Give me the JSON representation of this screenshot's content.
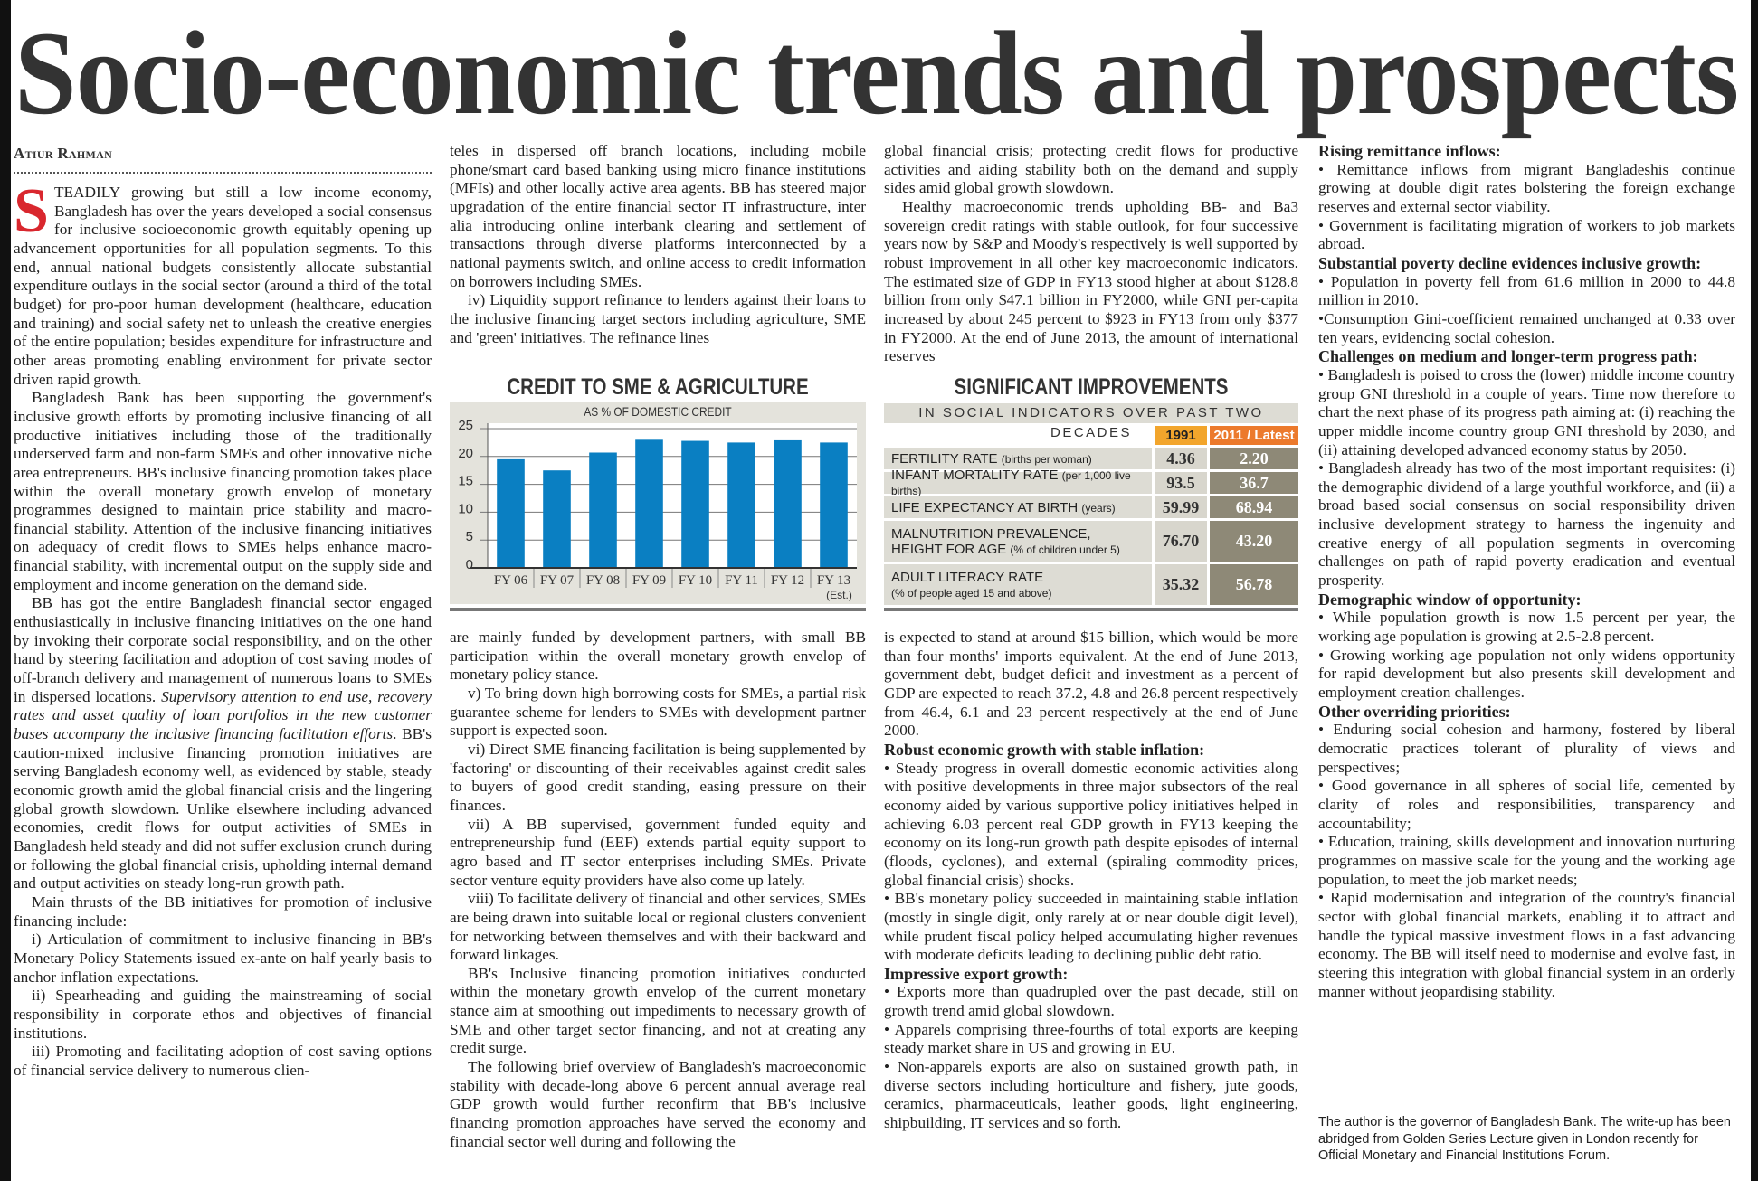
{
  "title": "Socio-economic trends and prospects",
  "byline": "Atiur Rahman",
  "colors": {
    "dropcap": "#d9272e",
    "bar": "#0a7fc2",
    "header_1991": "#f2a52c",
    "header_latest": "#ec7a2c"
  },
  "columns": [
    {
      "id": "col1",
      "blocks": [
        {
          "type": "p",
          "dropcap": "S",
          "text": "TEADILY growing but still a low income economy, Bangladesh has over the years developed a social consensus for inclusive socioeconomic growth equitably opening up advancement opportunities for all population segments. To this end, annual national budgets consistently allocate substantial expenditure outlays in the social sector (around a third of the total budget) for pro-poor human development (healthcare, education and training) and social safety net to unleash the creative energies of the entire population; besides expenditure for infrastructure and other areas promoting enabling environment for private sector driven rapid growth."
        },
        {
          "type": "p",
          "text": "Bangladesh Bank has been supporting the government's inclusive growth efforts by promoting inclusive financing of all productive initiatives including those of the traditionally underserved farm and non-farm SMEs and other innovative niche area entrepreneurs. BB's inclusive financing promotion takes place within the overall monetary growth envelop of monetary programmes designed to maintain price stability and macro-financial stability. Attention of the inclusive financing initiatives on adequacy of credit flows to SMEs helps enhance macro-financial stability, with incremental output on the supply side and employment and income generation on the demand side."
        },
        {
          "type": "p",
          "segments": [
            {
              "text": "BB has got the entire Bangladesh financial sector engaged enthusiastically in inclusive financing initiatives on the one hand by invoking their corporate social responsibility, and on the other hand by steering facilitation and adoption of cost saving modes of off-branch delivery and management of numerous loans to SMEs in dispersed locations. "
            },
            {
              "text": "Supervisory attention to end use, recovery rates and asset quality of loan portfolios in the new customer bases accompany the inclusive financing facilitation efforts",
              "italic": true
            },
            {
              "text": ". BB's caution-mixed inclusive financing promotion initiatives are serving Bangladesh economy well, as evidenced by stable, steady economic growth amid the global financial crisis and the lingering global growth slowdown. Unlike elsewhere including advanced economies, credit flows for output activities of SMEs in Bangladesh held steady and did not suffer exclusion crunch during or following the global financial crisis, upholding internal demand and output activities on steady long-run growth path."
            }
          ]
        },
        {
          "type": "p",
          "text": "Main thrusts of the BB initiatives for promotion of inclusive financing include:"
        },
        {
          "type": "p",
          "text": "i) Articulation of commitment to inclusive financing in BB's Monetary Policy Statements issued ex-ante on half yearly basis to anchor inflation expectations."
        },
        {
          "type": "p",
          "text": "ii) Spearheading and guiding the mainstreaming of social responsibility in corporate ethos and objectives of financial institutions."
        },
        {
          "type": "p",
          "text": "iii) Promoting and facilitating adoption of cost saving options of financial service delivery to numerous clien-"
        }
      ]
    },
    {
      "id": "col2-top",
      "blocks": [
        {
          "type": "noind",
          "text": "teles in dispersed off branch locations, including mobile phone/smart card based banking using micro finance institutions (MFIs) and other locally active area agents. BB has steered major upgradation of the entire financial sector IT infrastructure, inter alia introducing online interbank clearing and settlement of transactions through diverse platforms interconnected by a national payments switch, and online access to credit information on borrowers including SMEs."
        },
        {
          "type": "p",
          "text": "iv) Liquidity support refinance to lenders against their loans to the inclusive financing target sectors including agriculture, SME and 'green' initiatives. The refinance lines"
        }
      ]
    },
    {
      "id": "col2-bottom",
      "blocks": [
        {
          "type": "noind",
          "text": "are mainly funded by development partners, with small BB participation within the overall monetary growth envelop of monetary policy stance."
        },
        {
          "type": "p",
          "text": "v) To bring down high borrowing costs for SMEs, a partial risk guarantee scheme for lenders to SMEs with development partner support is expected soon."
        },
        {
          "type": "p",
          "text": "vi) Direct SME financing facilitation is being supplemented by 'factoring' or discounting of their receivables against credit sales to buyers of good credit standing, easing pressure on their finances."
        },
        {
          "type": "p",
          "text": "vii) A BB supervised, government funded equity and entrepreneurship fund (EEF) extends partial equity support to agro based and IT sector enterprises including SMEs. Private sector venture equity providers have also come up lately."
        },
        {
          "type": "p",
          "text": "viii) To facilitate delivery of financial and other services, SMEs are being drawn into suitable local or regional clusters convenient for networking between themselves and with their backward and forward linkages."
        },
        {
          "type": "p",
          "text": "BB's Inclusive financing promotion initiatives conducted within the monetary growth envelop of the current monetary stance aim at smoothing out impediments to necessary growth of SME and other target sector financing, and not at creating any credit surge."
        },
        {
          "type": "p",
          "text": "The following brief overview of Bangladesh's macroeconomic stability with decade-long above 6 percent annual average real GDP growth would further reconfirm that BB's inclusive financing promotion approaches have served the economy and financial sector well during and following the"
        }
      ]
    },
    {
      "id": "col3-top",
      "blocks": [
        {
          "type": "noind",
          "text": "global financial crisis; protecting credit flows for productive activities and aiding stability both on the demand and supply sides amid global growth slowdown."
        },
        {
          "type": "p",
          "text": "Healthy macroeconomic trends upholding BB- and Ba3 sovereign credit ratings with stable outlook, for four successive years now by S&P and Moody's respectively is well supported by robust improvement in all other key macroeconomic indicators. The estimated size of GDP in FY13 stood higher at about $128.8 billion from only $47.1 billion in FY2000, while GNI per-capita increased by about 245 percent to $923 in FY13 from only $377 in FY2000. At the end of June 2013, the amount of international reserves"
        }
      ]
    },
    {
      "id": "col3-bottom",
      "blocks": [
        {
          "type": "noind",
          "text": "is expected to stand at around $15 billion, which would be more than four months' imports equivalent. At the end of June 2013, government debt, budget deficit and investment as a percent of GDP are expected to reach 37.2, 4.8 and 26.8 percent respectively from 46.4, 6.1 and 23 percent respectively at the end of June 2000."
        },
        {
          "type": "h",
          "text": "Robust economic growth with stable inflation:"
        },
        {
          "type": "b",
          "text": "• Steady progress in overall domestic economic activities along with positive developments in three major subsectors of the real economy aided by various supportive policy initiatives helped in achieving 6.03 percent real GDP growth in FY13 keeping the economy on its long-run growth path despite episodes of internal (floods, cyclones), and external (spiraling commodity prices, global financial crisis) shocks."
        },
        {
          "type": "b",
          "text": "•  BB's monetary policy succeeded in maintaining stable inflation (mostly in single digit, only rarely at or near double digit level), while prudent fiscal policy helped accumulating higher revenues with moderate deficits leading to declining public debt ratio."
        },
        {
          "type": "h",
          "text": "Impressive export growth:"
        },
        {
          "type": "b",
          "text": "• Exports more than quadrupled over the past decade, still on growth trend amid global slowdown."
        },
        {
          "type": "b",
          "text": "• Apparels comprising three-fourths of total exports are keeping steady market share in US and growing in EU."
        },
        {
          "type": "b",
          "text": "• Non-apparels exports are also on sustained growth path, in diverse sectors including horticulture and fishery, jute goods, ceramics, pharmaceuticals, leather goods, light engineering, shipbuilding, IT services and so forth."
        }
      ]
    },
    {
      "id": "col4",
      "blocks": [
        {
          "type": "h",
          "text": "Rising remittance inflows:"
        },
        {
          "type": "b",
          "text": "• Remittance inflows from migrant Bangladeshis continue growing at double digit rates bolstering the foreign exchange reserves and external sector viability."
        },
        {
          "type": "b",
          "text": "• Government is facilitating migration of workers to job markets abroad."
        },
        {
          "type": "h",
          "text": "Substantial poverty decline evidences inclusive growth:"
        },
        {
          "type": "b",
          "text": "• Population in poverty fell from 61.6 million in 2000 to 44.8 million in 2010."
        },
        {
          "type": "b",
          "text": "•Consumption Gini-coefficient remained unchanged at 0.33 over ten years, evidencing social cohesion."
        },
        {
          "type": "h",
          "text": "Challenges on medium and longer-term progress path:"
        },
        {
          "type": "b",
          "text": "• Bangladesh is poised to cross the (lower) middle income country group GNI threshold in a couple of years. Time now therefore to chart the next phase of its progress path aiming at: (i) reaching the upper middle income country group GNI threshold by 2030, and (ii) attaining developed advanced economy status by 2050."
        },
        {
          "type": "b",
          "text": "• Bangladesh already has two of the most important requisites: (i) the demographic dividend of a large youthful workforce, and (ii) a broad based social consensus on social responsibility driven inclusive development strategy to harness the ingenuity and creative energy of all population segments in overcoming challenges on path of rapid poverty eradication and eventual prosperity."
        },
        {
          "type": "h",
          "text": "Demographic window of opportunity:"
        },
        {
          "type": "b",
          "text": "• While population growth is now 1.5 percent per year, the working age population is growing at 2.5-2.8 percent."
        },
        {
          "type": "b",
          "text": "• Growing working age population not only widens opportunity for rapid development but also presents skill development and employment creation challenges."
        },
        {
          "type": "h",
          "text": "Other overriding priorities:"
        },
        {
          "type": "b",
          "text": "• Enduring social cohesion and harmony, fostered by liberal democratic practices tolerant of  plurality of views and perspectives;"
        },
        {
          "type": "b",
          "text": "• Good governance in all spheres of social life, cemented by clarity of roles and responsibilities, transparency and accountability;"
        },
        {
          "type": "b",
          "text": "• Education, training, skills development and innovation nurturing programmes on massive scale for the young and the working age population, to meet the job market needs;"
        },
        {
          "type": "b",
          "text": "• Rapid modernisation and integration of the country's financial sector with global financial markets, enabling it to attract and handle the typical massive investment flows in a fast advancing economy. The BB will itself need to modernise and evolve fast, in steering this integration with global financial system in an orderly manner without jeopardising stability."
        }
      ]
    }
  ],
  "footer": "The author is the governor of Bangladesh Bank. The write-up has been abridged from Golden Series Lecture given in London recently for Official Monetary and Financial Institutions Forum.",
  "chart_data": {
    "type": "bar",
    "title": "CREDIT TO SME & AGRICULTURE",
    "subtitle": "AS % OF DOMESTIC CREDIT",
    "categories": [
      "FY 06",
      "FY 07",
      "FY 08",
      "FY 09",
      "FY 10",
      "FY 11",
      "FY 12",
      "FY 13"
    ],
    "category_notes": [
      "",
      "",
      "",
      "",
      "",
      "",
      "",
      "(Est.)"
    ],
    "values": [
      19.5,
      17.5,
      20.7,
      23.0,
      22.8,
      22.5,
      22.9,
      22.5
    ],
    "yticks": [
      0,
      5,
      10,
      15,
      20,
      25
    ],
    "ylim": [
      0,
      25
    ],
    "grid": true,
    "xlabel": "",
    "ylabel": ""
  },
  "table": {
    "title": "SIGNIFICANT IMPROVEMENTS",
    "subtitle": "IN SOCIAL INDICATORS OVER PAST TWO DECADES",
    "headers": [
      "1991",
      "2011 / Latest"
    ],
    "rows": [
      {
        "label": "FERTILITY RATE",
        "unit": "(births per woman)",
        "v1991": "4.36",
        "latest": "2.20"
      },
      {
        "label": "INFANT MORTALITY RATE",
        "unit": "(per 1,000 live births)",
        "v1991": "93.5",
        "latest": "36.7"
      },
      {
        "label": "LIFE EXPECTANCY AT BIRTH",
        "unit": "(years)",
        "v1991": "59.99",
        "latest": "68.94"
      },
      {
        "label": "MALNUTRITION PREVALENCE,",
        "label2": "HEIGHT FOR AGE",
        "unit": "(% of children under 5)",
        "v1991": "76.70",
        "latest": "43.20"
      },
      {
        "label": "ADULT LITERACY RATE",
        "unit": "(% of people aged 15 and above)",
        "v1991": "35.32",
        "latest": "56.78"
      }
    ]
  }
}
